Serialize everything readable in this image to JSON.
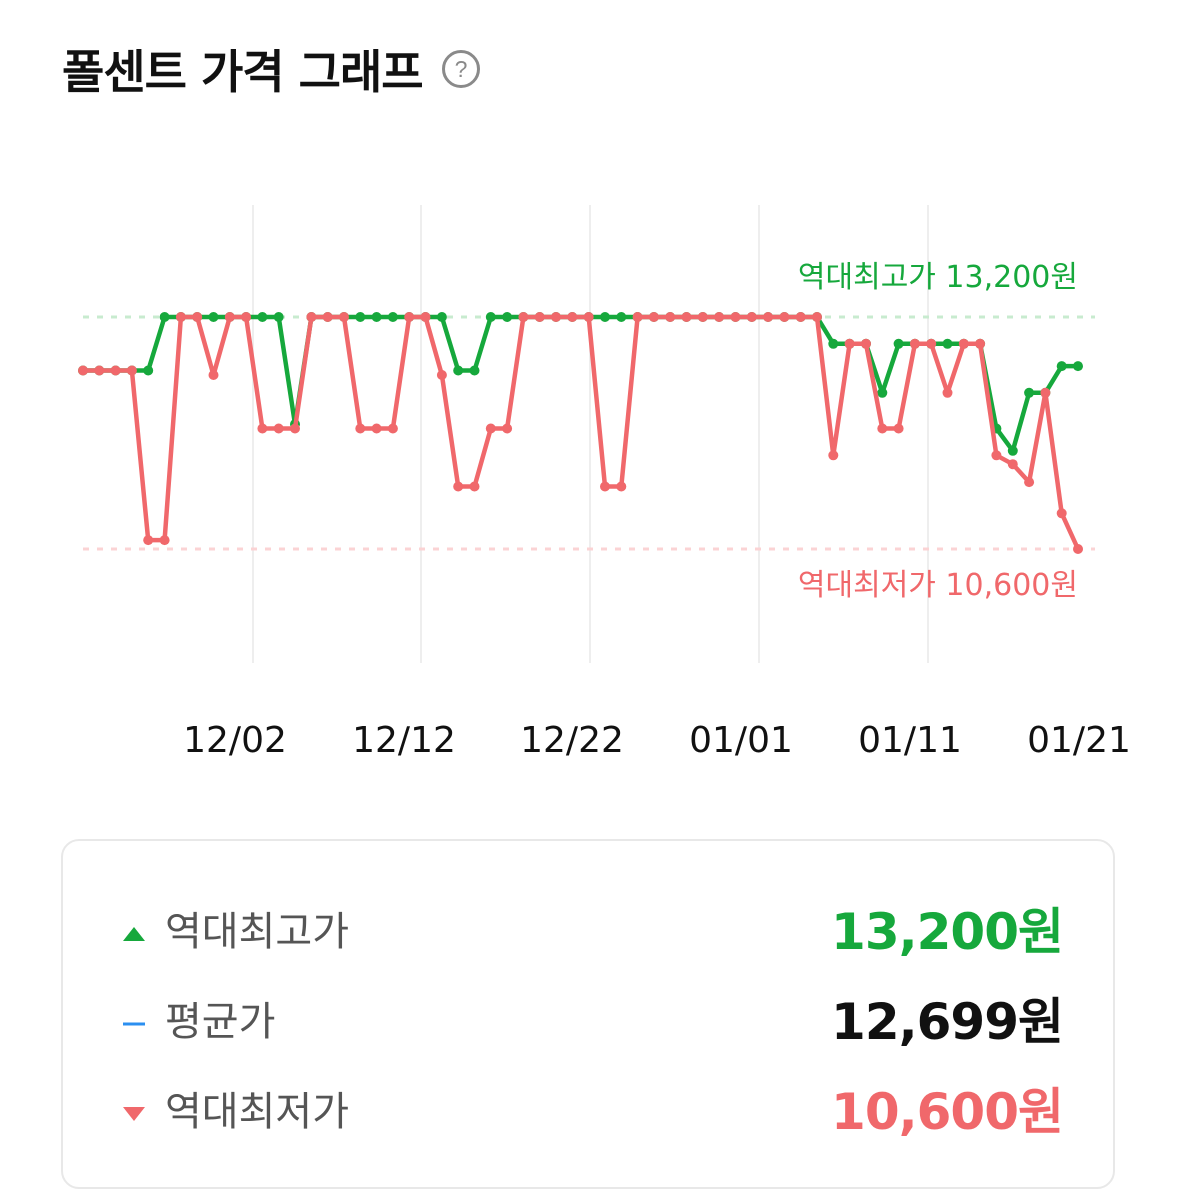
{
  "header": {
    "title": "폴센트 가격 그래프"
  },
  "colors": {
    "high": "#16a83c",
    "low": "#f0686b",
    "avg": "#2b8ff0",
    "grid": "#eeeeee"
  },
  "chart_data": {
    "type": "line",
    "title": "",
    "xlabel": "",
    "ylabel": "",
    "x_ticks": [
      "12/02",
      "12/12",
      "12/22",
      "01/01",
      "01/11",
      "01/21"
    ],
    "ylim": [
      10000,
      14000
    ],
    "annotations": {
      "max_label": "역대최고가 13,200원",
      "min_label": "역대최저가 10,600원"
    },
    "reference_lines": {
      "max": 13200,
      "min": 10600
    },
    "series": [
      {
        "color": "#16a83c",
        "values": [
          12600,
          12600,
          12600,
          12600,
          12600,
          13200,
          13200,
          13200,
          13200,
          13200,
          13200,
          13200,
          13200,
          12000,
          13200,
          13200,
          13200,
          13200,
          13200,
          13200,
          13200,
          13200,
          13200,
          12600,
          12600,
          13200,
          13200,
          13200,
          13200,
          13200,
          13200,
          13200,
          13200,
          13200,
          13200,
          13200,
          13200,
          13200,
          13200,
          13200,
          13200,
          13200,
          13200,
          13200,
          13200,
          13200,
          12900,
          12900,
          12900,
          12350,
          12900,
          12900,
          12900,
          12900,
          12900,
          12900,
          11950,
          11700,
          12350,
          12350,
          12650,
          12650
        ]
      },
      {
        "color": "#f0686b",
        "values": [
          12600,
          12600,
          12600,
          12600,
          10700,
          10700,
          13200,
          13200,
          12550,
          13200,
          13200,
          11950,
          11950,
          11950,
          13200,
          13200,
          13200,
          11950,
          11950,
          11950,
          13200,
          13200,
          12550,
          11300,
          11300,
          11950,
          11950,
          13200,
          13200,
          13200,
          13200,
          13200,
          11300,
          11300,
          13200,
          13200,
          13200,
          13200,
          13200,
          13200,
          13200,
          13200,
          13200,
          13200,
          13200,
          13200,
          11650,
          12900,
          12900,
          11950,
          11950,
          12900,
          12900,
          12350,
          12900,
          12900,
          11650,
          11550,
          11350,
          12350,
          11000,
          10600
        ]
      }
    ]
  },
  "summary": {
    "high_label": "역대최고가",
    "high_value": "13,200원",
    "avg_label": "평균가",
    "avg_value": "12,699원",
    "low_label": "역대최저가",
    "low_value": "10,600원"
  }
}
